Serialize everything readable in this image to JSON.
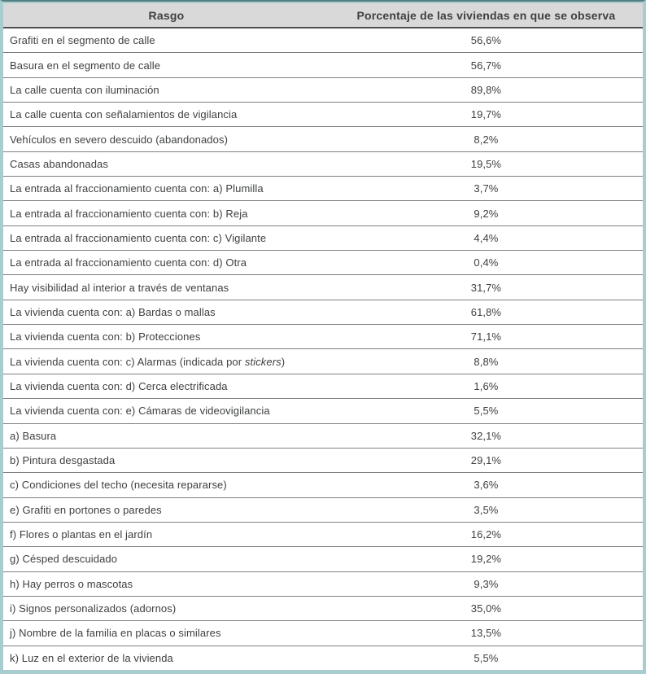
{
  "colors": {
    "outer_border_teal": "#a7cdd0",
    "top_border_dark_teal": "#557e81",
    "header_background": "#d9d9d9",
    "header_separator": "#4f5151",
    "row_separator": "#7d7f7f",
    "text": "#3e4041",
    "row_background": "#ffffff"
  },
  "table": {
    "columns": [
      {
        "label": "Rasgo"
      },
      {
        "label": "Porcentaje de las viviendas en que se observa"
      }
    ],
    "rows": [
      {
        "rasgo": "Grafiti en el segmento de calle",
        "valor": "56,6%"
      },
      {
        "rasgo": "Basura en el segmento de calle",
        "valor": "56,7%"
      },
      {
        "rasgo": "La calle cuenta con iluminación",
        "valor": "89,8%"
      },
      {
        "rasgo": "La calle cuenta con señalamientos de vigilancia",
        "valor": "19,7%"
      },
      {
        "rasgo": "Vehículos en severo descuido (abandonados)",
        "valor": "8,2%"
      },
      {
        "rasgo": "Casas abandonadas",
        "valor": "19,5%"
      },
      {
        "rasgo": "La entrada al fraccionamiento cuenta con: a) Plumilla",
        "valor": "3,7%"
      },
      {
        "rasgo": "La entrada al fraccionamiento cuenta con: b) Reja",
        "valor": "9,2%"
      },
      {
        "rasgo": "La entrada al fraccionamiento cuenta con: c) Vigilante",
        "valor": "4,4%"
      },
      {
        "rasgo": "La entrada al fraccionamiento cuenta con: d) Otra",
        "valor": "0,4%"
      },
      {
        "rasgo": "Hay visibilidad al interior a través de ventanas",
        "valor": "31,7%"
      },
      {
        "rasgo": "La vivienda cuenta con: a) Bardas o mallas",
        "valor": "61,8%"
      },
      {
        "rasgo": "La vivienda cuenta con: b) Protecciones",
        "valor": "71,1%"
      },
      {
        "rasgo": "La vivienda cuenta con: c) Alarmas (indicada por stickers)",
        "valor": "8,8%",
        "rasgo_parts": [
          {
            "t": "La vivienda cuenta con: c) Alarmas (indicada por ",
            "i": false
          },
          {
            "t": "stickers",
            "i": true
          },
          {
            "t": ")",
            "i": false
          }
        ]
      },
      {
        "rasgo": "La vivienda cuenta con: d) Cerca electrificada",
        "valor": "1,6%"
      },
      {
        "rasgo": "La vivienda cuenta con: e) Cámaras de videovigilancia",
        "valor": "5,5%"
      },
      {
        "rasgo": "a) Basura",
        "valor": "32,1%"
      },
      {
        "rasgo": "b) Pintura desgastada",
        "valor": "29,1%"
      },
      {
        "rasgo": "c) Condiciones del techo (necesita repararse)",
        "valor": "3,6%"
      },
      {
        "rasgo": "e) Grafiti en portones o paredes",
        "valor": "3,5%"
      },
      {
        "rasgo": "f) Flores o plantas en el jardín",
        "valor": "16,2%"
      },
      {
        "rasgo": "g) Césped descuidado",
        "valor": "19,2%"
      },
      {
        "rasgo": "h) Hay perros o mascotas",
        "valor": "9,3%"
      },
      {
        "rasgo": "i) Signos personalizados (adornos)",
        "valor": "35,0%"
      },
      {
        "rasgo": "j) Nombre de la familia en placas o similares",
        "valor": "13,5%"
      },
      {
        "rasgo": "k) Luz en el exterior de la vivienda",
        "valor": "5,5%"
      }
    ]
  }
}
